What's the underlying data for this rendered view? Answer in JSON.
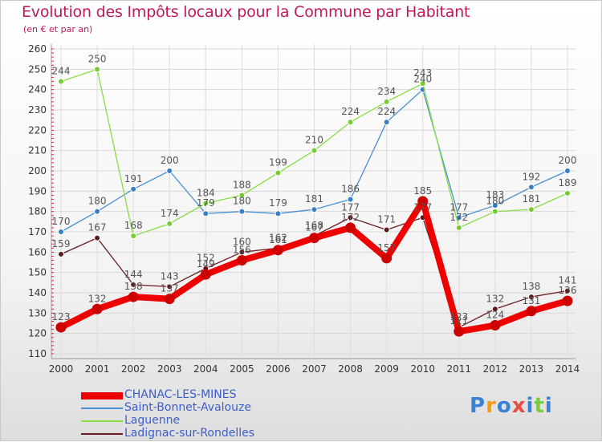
{
  "title": "Evolution des Impôts locaux pour la Commune par Habitant",
  "subtitle": "(en € et par an)",
  "logo": "Proxiti",
  "chart_data": {
    "type": "line",
    "title": "Evolution des Impôts locaux pour la Commune par Habitant",
    "ylabel": "(en € et par an)",
    "xlabel": "",
    "ylim": [
      110,
      260
    ],
    "y_ticks": [
      110,
      120,
      130,
      140,
      150,
      160,
      170,
      180,
      190,
      200,
      210,
      220,
      230,
      240,
      250,
      260
    ],
    "categories": [
      "2000",
      "2001",
      "2002",
      "2003",
      "2004",
      "2005",
      "2006",
      "2007",
      "2008",
      "2009",
      "2010",
      "2011",
      "2012",
      "2013",
      "2014"
    ],
    "grid": true,
    "legend_position": "bottom-left",
    "series": [
      {
        "name": "CHANAC-LES-MINES",
        "color": "#ee0000",
        "values": [
          123,
          132,
          138,
          137,
          149,
          156,
          161,
          167,
          172,
          157,
          185,
          121,
          124,
          131,
          136
        ]
      },
      {
        "name": "Saint-Bonnet-Avalouze",
        "color": "#4a8fd1",
        "values": [
          170,
          180,
          191,
          200,
          179,
          180,
          179,
          181,
          186,
          224,
          240,
          177,
          183,
          192,
          200
        ]
      },
      {
        "name": "Laguenne",
        "color": "#88dd44",
        "values": [
          244,
          250,
          168,
          174,
          184,
          188,
          199,
          210,
          224,
          234,
          243,
          172,
          180,
          181,
          189
        ]
      },
      {
        "name": "Ladignac-sur-Rondelles",
        "color": "#6b1d24",
        "values": [
          159,
          167,
          144,
          143,
          152,
          160,
          162,
          168,
          177,
          171,
          177,
          123,
          132,
          138,
          141
        ]
      }
    ]
  }
}
